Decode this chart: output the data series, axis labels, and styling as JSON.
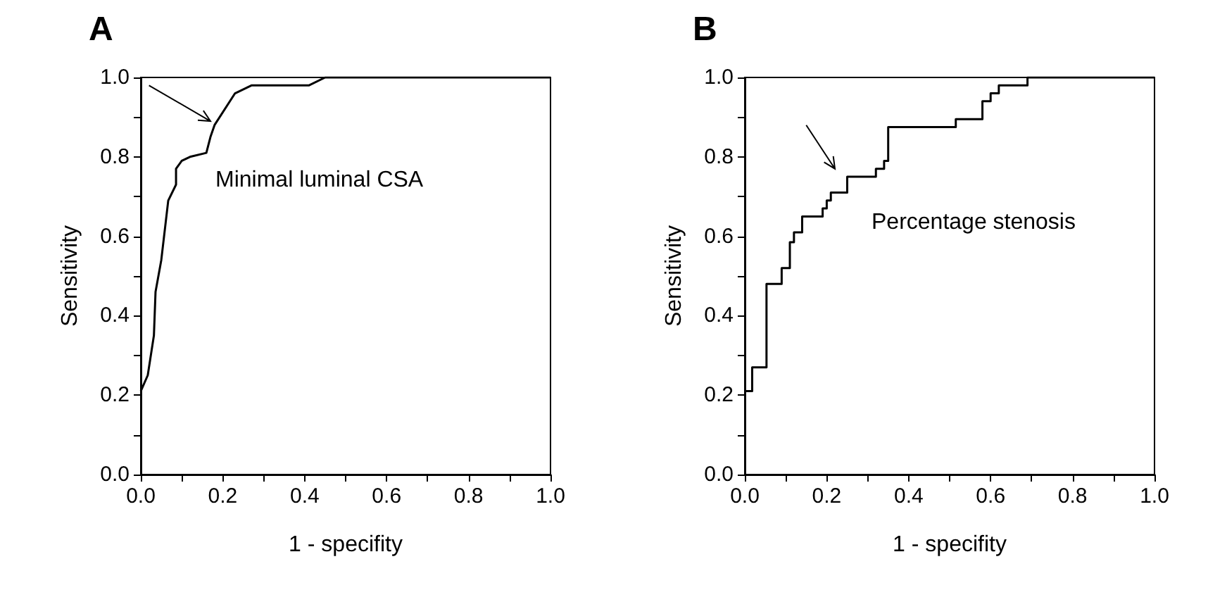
{
  "chart_data": [
    {
      "type": "line",
      "title": "A",
      "xlabel": "1 - specifity",
      "ylabel": "Sensitivity",
      "annotations": [
        "Minimal luminal CSA"
      ],
      "x": [
        0,
        0.017,
        0.032,
        0.036,
        0.05,
        0.067,
        0.086,
        0.086,
        0.1,
        0.12,
        0.16,
        0.17,
        0.18,
        0.23,
        0.27,
        0.41,
        0.45,
        1.0
      ],
      "series": [
        {
          "color": "#000000",
          "values": [
            0.21,
            0.25,
            0.35,
            0.46,
            0.54,
            0.69,
            0.73,
            0.77,
            0.79,
            0.8,
            0.81,
            0.85,
            0.88,
            0.96,
            0.98,
            0.98,
            1.0,
            1.0
          ]
        }
      ],
      "xlim": [
        0,
        1
      ],
      "ylim": [
        0,
        1
      ],
      "xticks": [
        {
          "value": 0,
          "label": "0.0"
        },
        {
          "value": 0.1,
          "label": null
        },
        {
          "value": 0.2,
          "label": "0.2"
        },
        {
          "value": 0.3,
          "label": null
        },
        {
          "value": 0.4,
          "label": "0.4"
        },
        {
          "value": 0.5,
          "label": null
        },
        {
          "value": 0.6,
          "label": "0.6"
        },
        {
          "value": 0.7,
          "label": null
        },
        {
          "value": 0.8,
          "label": "0.8"
        },
        {
          "value": 0.9,
          "label": null
        },
        {
          "value": 1,
          "label": "1.0"
        }
      ],
      "yticks": [
        {
          "value": 0,
          "label": "0.0"
        },
        {
          "value": 0.1,
          "label": null
        },
        {
          "value": 0.2,
          "label": "0.2"
        },
        {
          "value": 0.3,
          "label": null
        },
        {
          "value": 0.4,
          "label": "0.4"
        },
        {
          "value": 0.5,
          "label": null
        },
        {
          "value": 0.6,
          "label": "0.6"
        },
        {
          "value": 0.7,
          "label": null
        },
        {
          "value": 0.8,
          "label": "0.8"
        },
        {
          "value": 0.9,
          "label": null
        },
        {
          "value": 1,
          "label": "1.0"
        }
      ],
      "grid": false,
      "marker": "none",
      "line_style": "solid"
    },
    {
      "type": "step",
      "title": "B",
      "xlabel": "1 - specifity",
      "ylabel": "Sensitivity",
      "annotations": [
        "Percentage stenosis"
      ],
      "x": [
        0,
        0.018,
        0.053,
        0.09,
        0.11,
        0.12,
        0.14,
        0.19,
        0.2,
        0.21,
        0.25,
        0.32,
        0.34,
        0.35,
        0.515,
        0.58,
        0.6,
        0.62,
        0.69,
        1.0
      ],
      "series": [
        {
          "color": "#000000",
          "values": [
            0.21,
            0.27,
            0.48,
            0.52,
            0.585,
            0.61,
            0.65,
            0.67,
            0.69,
            0.71,
            0.75,
            0.77,
            0.79,
            0.875,
            0.895,
            0.94,
            0.96,
            0.98,
            1.0,
            1.0
          ]
        }
      ],
      "xlim": [
        0,
        1
      ],
      "ylim": [
        0,
        1
      ],
      "xticks": [
        {
          "value": 0,
          "label": "0.0"
        },
        {
          "value": 0.1,
          "label": null
        },
        {
          "value": 0.2,
          "label": "0.2"
        },
        {
          "value": 0.3,
          "label": null
        },
        {
          "value": 0.4,
          "label": "0.4"
        },
        {
          "value": 0.5,
          "label": null
        },
        {
          "value": 0.6,
          "label": "0.6"
        },
        {
          "value": 0.7,
          "label": null
        },
        {
          "value": 0.8,
          "label": "0.8"
        },
        {
          "value": 0.9,
          "label": null
        },
        {
          "value": 1,
          "label": "1.0"
        }
      ],
      "yticks": [
        {
          "value": 0,
          "label": "0.0"
        },
        {
          "value": 0.1,
          "label": null
        },
        {
          "value": 0.2,
          "label": "0.2"
        },
        {
          "value": 0.3,
          "label": null
        },
        {
          "value": 0.4,
          "label": "0.4"
        },
        {
          "value": 0.5,
          "label": null
        },
        {
          "value": 0.6,
          "label": "0.6"
        },
        {
          "value": 0.7,
          "label": null
        },
        {
          "value": 0.8,
          "label": "0.8"
        },
        {
          "value": 0.9,
          "label": null
        },
        {
          "value": 1,
          "label": "1.0"
        }
      ],
      "grid": false,
      "marker": "none",
      "line_style": "solid"
    }
  ]
}
